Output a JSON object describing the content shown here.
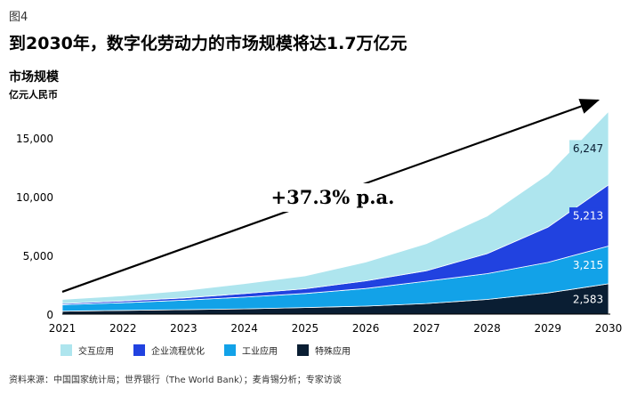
{
  "figure_label": "图4",
  "title": "到2030年，数字化劳动力的市场规模将达1.7万亿元",
  "source": "资料来源：中国国家统计局；世界银行（The World Bank）；麦肯锡分析；专家访谈",
  "chart_data": {
    "type": "area",
    "stacked": true,
    "title": "到2030年，数字化劳动力的市场规模将达1.7万亿元",
    "ylabel": "市场规模",
    "yunit": "亿元人民币",
    "x": [
      "2021",
      "2022",
      "2023",
      "2024",
      "2025",
      "2026",
      "2027",
      "2028",
      "2029",
      "2030"
    ],
    "ylim": [
      0,
      15000
    ],
    "yticks": [
      "0",
      "5,000",
      "10,000",
      "15,000"
    ],
    "series": [
      {
        "name": "特殊应用",
        "color": "#0a1e33",
        "values": [
          250,
          320,
          380,
          450,
          560,
          680,
          900,
          1250,
          1800,
          2583
        ]
      },
      {
        "name": "工业应用",
        "color": "#12a2e8",
        "values": [
          550,
          650,
          800,
          1000,
          1200,
          1500,
          1900,
          2200,
          2600,
          3215
        ]
      },
      {
        "name": "企业流程优化",
        "color": "#2142e0",
        "values": [
          100,
          150,
          200,
          300,
          400,
          650,
          900,
          1700,
          3000,
          5213
        ]
      },
      {
        "name": "交互应用",
        "color": "#aee5ee",
        "values": [
          350,
          450,
          620,
          850,
          1100,
          1600,
          2300,
          3200,
          4500,
          6247
        ]
      }
    ],
    "data_labels": [
      {
        "series": "交互应用",
        "text": "6,247"
      },
      {
        "series": "企业流程优化",
        "text": "5,213"
      },
      {
        "series": "工业应用",
        "text": "3,215"
      },
      {
        "series": "特殊应用",
        "text": "2,583"
      }
    ],
    "annotation": "+37.3% p.a.",
    "cagr_arrow_from": 1900,
    "cagr_arrow_to": 18200
  }
}
